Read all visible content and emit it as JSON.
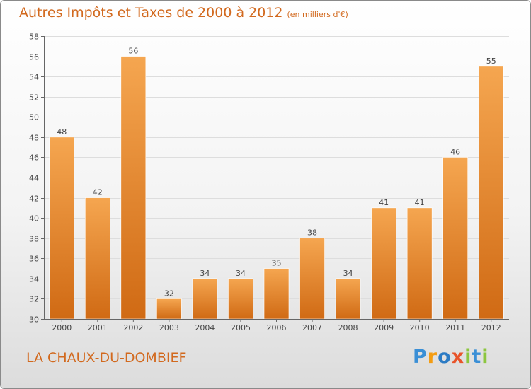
{
  "header": {
    "title": "Autres Impôts et Taxes de 2000 à 2012",
    "subtitle": "(en milliers d'€)"
  },
  "commune": "LA CHAUX-DU-DOMBIEF",
  "logo": {
    "text": "Proxiti",
    "letters": [
      {
        "ch": "P",
        "color": "#3a8fd6"
      },
      {
        "ch": "r",
        "color": "#f39c12"
      },
      {
        "ch": "o",
        "color": "#2c7bc4"
      },
      {
        "ch": "x",
        "color": "#e8542a"
      },
      {
        "ch": "i",
        "color": "#8cc63f"
      },
      {
        "ch": "t",
        "color": "#3a8fd6"
      },
      {
        "ch": "i",
        "color": "#8cc63f"
      }
    ]
  },
  "colors": {
    "accent": "#d2691e",
    "bar_light": "#f5a650",
    "bar_dark": "#d06a14",
    "grid": "#dddddd",
    "axis": "#666666"
  },
  "chart_data": {
    "type": "bar",
    "title": "Autres Impôts et Taxes de 2000 à 2012",
    "subtitle": "(en milliers d'€)",
    "xlabel": "",
    "ylabel": "",
    "categories": [
      "2000",
      "2001",
      "2002",
      "2003",
      "2004",
      "2005",
      "2006",
      "2007",
      "2008",
      "2009",
      "2010",
      "2011",
      "2012"
    ],
    "values": [
      48,
      42,
      56,
      32,
      34,
      34,
      35,
      38,
      34,
      41,
      41,
      46,
      55
    ],
    "data_labels": [
      "48",
      "42",
      "56",
      "32",
      "34",
      "34",
      "35",
      "38",
      "34",
      "41",
      "41",
      "46",
      "55"
    ],
    "ylim": [
      30,
      58
    ],
    "yticks": [
      30,
      32,
      34,
      36,
      38,
      40,
      42,
      44,
      46,
      48,
      50,
      52,
      54,
      56,
      58
    ],
    "grid": true,
    "legend": "none"
  }
}
